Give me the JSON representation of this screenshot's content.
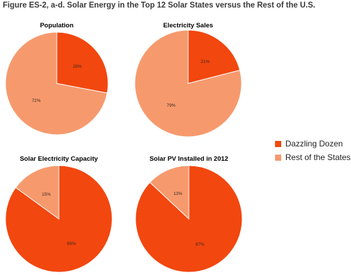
{
  "figure_title": "Figure ES-2, a-d. Solar Energy in the Top 12 Solar States versus the Rest of the U.S.",
  "colors": {
    "dazzling_dozen": "#f2470f",
    "rest_of_states": "#f69a6e",
    "border": "#ffffff"
  },
  "legend": [
    {
      "label": "Dazzling Dozen",
      "color": "#f2470f"
    },
    {
      "label": "Rest of the States",
      "color": "#f69a6e"
    }
  ],
  "chart_data": [
    {
      "type": "pie",
      "title": "Population",
      "slices": [
        {
          "label": "Dazzling Dozen",
          "value": 28,
          "text": "28%"
        },
        {
          "label": "Rest of the States",
          "value": 72,
          "text": "72%"
        }
      ]
    },
    {
      "type": "pie",
      "title": "Electricity Sales",
      "slices": [
        {
          "label": "Dazzling Dozen",
          "value": 21,
          "text": "21%"
        },
        {
          "label": "Rest of the States",
          "value": 79,
          "text": "79%"
        }
      ]
    },
    {
      "type": "pie",
      "title": "Solar Electricity Capacity",
      "slices": [
        {
          "label": "Dazzling Dozen",
          "value": 85,
          "text": "85%"
        },
        {
          "label": "Rest of the States",
          "value": 15,
          "text": "15%"
        }
      ]
    },
    {
      "type": "pie",
      "title": "Solar PV Installed in 2012",
      "slices": [
        {
          "label": "Dazzling Dozen",
          "value": 87,
          "text": "87%"
        },
        {
          "label": "Rest of the States",
          "value": 13,
          "text": "13%"
        }
      ]
    }
  ]
}
